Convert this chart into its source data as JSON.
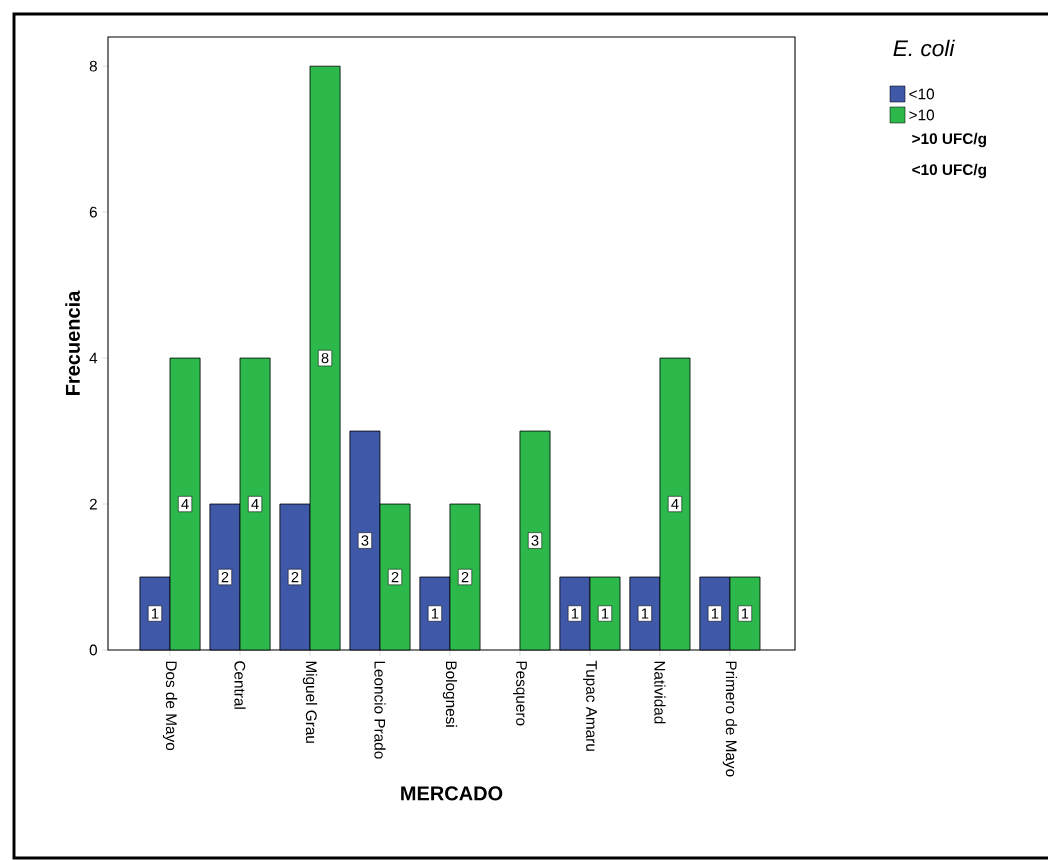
{
  "chart_data": {
    "type": "bar",
    "xlabel": "MERCADO",
    "ylabel": "Frecuencia",
    "legend_title": "E. coli",
    "legend": "top right",
    "categories": [
      "Dos de Mayo",
      "Central",
      "Miguel Grau",
      "Leoncio Prado",
      "Bolognesi",
      "Pesquero",
      "Tupac Amaru",
      "Natividad",
      "Primero de Mayo"
    ],
    "series": [
      {
        "name": "<10",
        "color": "#3f58a8",
        "values": [
          1,
          2,
          2,
          3,
          1,
          null,
          1,
          1,
          1
        ],
        "value_labels": [
          "1",
          "2",
          "2",
          "3",
          "1",
          null,
          "1",
          "1",
          "1"
        ]
      },
      {
        "name": ">10",
        "color": "#2db84b",
        "values": [
          4,
          4,
          8,
          2,
          2,
          3,
          1,
          4,
          1
        ],
        "value_labels": [
          "4",
          "4",
          "8",
          "2",
          "2",
          "3",
          "1",
          "4",
          "1"
        ]
      }
    ],
    "ylim": [
      0,
      8.4
    ],
    "yticks": [
      0,
      2,
      4,
      6,
      8
    ],
    "grid": false,
    "annotations": [
      ">10 UFC/g",
      "<10 UFC/g"
    ]
  }
}
